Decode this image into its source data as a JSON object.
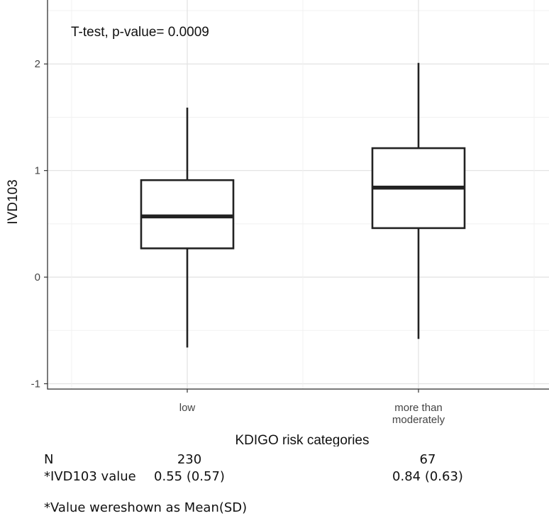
{
  "chart_data": {
    "type": "box",
    "title": "",
    "annotation": "T-test, p-value= 0.0009",
    "xlabel": "KDIGO risk categories",
    "ylabel": "IVD103",
    "ylim": [
      -1.05,
      2.6
    ],
    "yticks": [
      -1,
      0,
      1,
      2
    ],
    "ytick_labels": [
      "-1",
      "0",
      "1",
      "2"
    ],
    "grid": true,
    "categories": [
      {
        "label_lines": [
          "low"
        ],
        "whisker_low": -0.66,
        "q1": 0.27,
        "median": 0.57,
        "q3": 0.91,
        "whisker_high": 1.59
      },
      {
        "label_lines": [
          "more than",
          "moderately"
        ],
        "whisker_low": -0.58,
        "q1": 0.46,
        "median": 0.84,
        "q3": 1.21,
        "whisker_high": 2.01
      }
    ]
  },
  "stats_table": {
    "n_label": "N",
    "n_values": [
      "230",
      "67"
    ],
    "value_label": "*IVD103 value",
    "value_values": [
      "0.55 (0.57)",
      "0.84 (0.63)"
    ]
  },
  "footnote": "*Value wereshown as Mean(SD)"
}
